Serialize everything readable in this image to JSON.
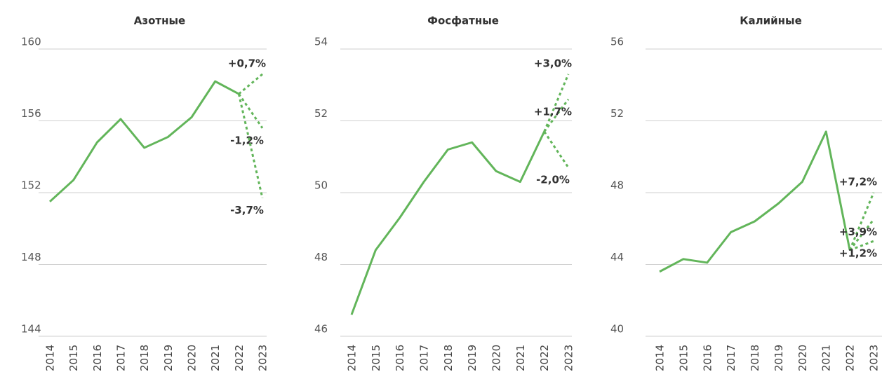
{
  "chart_data": [
    {
      "type": "line",
      "title": "Азотные",
      "color": "#62b55a",
      "categories": [
        "2014",
        "2015",
        "2016",
        "2017",
        "2018",
        "2019",
        "2020",
        "2021",
        "2022",
        "2023"
      ],
      "values": [
        151.5,
        152.7,
        154.8,
        156.1,
        154.5,
        155.1,
        156.2,
        158.2,
        157.5,
        null
      ],
      "forecasts": [
        {
          "label": "+0,7%",
          "value": 158.6
        },
        {
          "label": "-1,2%",
          "value": 155.6
        },
        {
          "label": "-3,7%",
          "value": 151.7
        }
      ],
      "ylim": [
        144,
        160
      ],
      "yticks": [
        144,
        148,
        152,
        156,
        160
      ],
      "grid": true
    },
    {
      "type": "line",
      "title": "Фосфатные",
      "color": "#62b55a",
      "categories": [
        "2014",
        "2015",
        "2016",
        "2017",
        "2018",
        "2019",
        "2020",
        "2021",
        "2022",
        "2023"
      ],
      "values": [
        46.6,
        48.4,
        49.3,
        50.3,
        51.2,
        51.4,
        50.6,
        50.3,
        51.7,
        null
      ],
      "forecasts": [
        {
          "label": "+3,0%",
          "value": 53.3
        },
        {
          "label": "+1,7%",
          "value": 52.6
        },
        {
          "label": "-2,0%",
          "value": 50.7
        }
      ],
      "ylim": [
        46,
        54
      ],
      "yticks": [
        46,
        48,
        50,
        52,
        54
      ],
      "grid": true
    },
    {
      "type": "line",
      "title": "Калийные",
      "color": "#62b55a",
      "categories": [
        "2014",
        "2015",
        "2016",
        "2017",
        "2018",
        "2019",
        "2020",
        "2021",
        "2022",
        "2023"
      ],
      "values": [
        43.6,
        44.3,
        44.1,
        45.8,
        46.4,
        47.4,
        48.6,
        51.4,
        44.8,
        null
      ],
      "forecasts": [
        {
          "label": "+7,2%",
          "value": 48.0
        },
        {
          "label": "+3,9%",
          "value": 46.5
        },
        {
          "label": "+1,2%",
          "value": 45.3
        }
      ],
      "ylim": [
        40,
        56
      ],
      "yticks": [
        40,
        44,
        48,
        52,
        56
      ],
      "grid": true
    }
  ]
}
